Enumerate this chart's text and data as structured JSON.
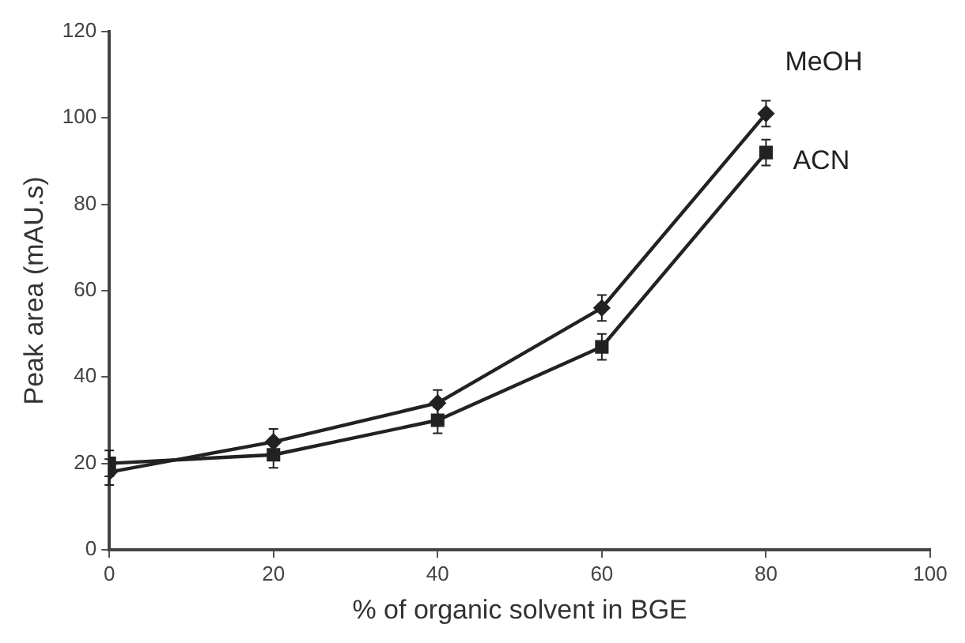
{
  "chart_data": {
    "type": "line",
    "xlabel": "% of organic solvent in BGE",
    "ylabel": "Peak area (mAU.s)",
    "x": [
      0,
      20,
      40,
      60,
      80
    ],
    "series": [
      {
        "name": "MeOH",
        "color": "#222222",
        "marker": "diamond",
        "values": [
          18,
          25,
          34,
          56,
          101
        ],
        "errors": [
          3,
          3,
          3,
          3,
          3
        ]
      },
      {
        "name": "ACN",
        "color": "#222222",
        "marker": "square",
        "values": [
          20,
          22,
          30,
          47,
          92
        ],
        "errors": [
          3,
          3,
          3,
          3,
          3
        ]
      }
    ],
    "xlim": [
      0,
      100
    ],
    "xticks": [
      0,
      20,
      40,
      60,
      80,
      100
    ],
    "ylim": [
      0,
      120
    ],
    "yticks": [
      0,
      20,
      40,
      60,
      80,
      100,
      120
    ],
    "grid": false,
    "legend": false,
    "line_style": "solid"
  }
}
